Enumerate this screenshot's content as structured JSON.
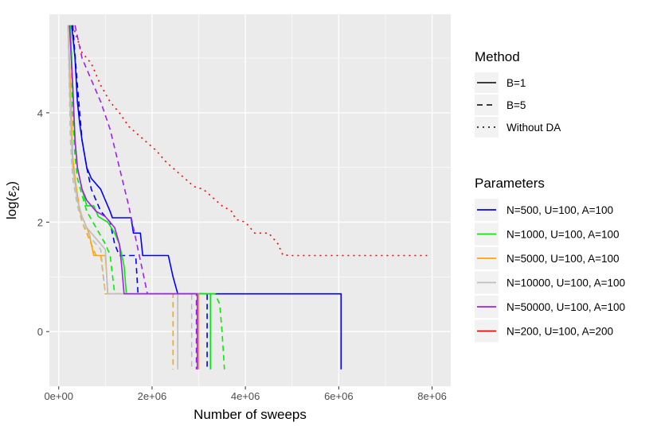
{
  "chart_data": {
    "type": "line",
    "title": "",
    "xlabel": "Number of sweeps",
    "ylabel_prefix": "log(",
    "ylabel_symbol": "ε",
    "ylabel_sub": "2",
    "ylabel_suffix": ")",
    "xlim": [
      -200000,
      8400000
    ],
    "ylim": [
      -1.0,
      5.8
    ],
    "xticks": [
      0,
      2000000,
      4000000,
      6000000,
      8000000
    ],
    "xtick_labels": [
      "0e+00",
      "2e+06",
      "4e+06",
      "6e+06",
      "8e+06"
    ],
    "yticks": [
      0,
      2,
      4
    ],
    "ytick_labels": [
      "0",
      "2",
      "4"
    ],
    "grid": true,
    "legend_placement": "right",
    "legend_method": {
      "title": "Method",
      "entries": [
        {
          "label": "B=1",
          "dash": "solid"
        },
        {
          "label": "B=5",
          "dash": "dashed"
        },
        {
          "label": "Without DA",
          "dash": "dotted"
        }
      ]
    },
    "legend_params": {
      "title": "Parameters",
      "entries": [
        {
          "label": "N=500, U=100, A=100",
          "color": "#0000FF"
        },
        {
          "label": "N=1000, U=100, A=100",
          "color": "#00EE00"
        },
        {
          "label": "N=5000, U=100, A=100",
          "color": "#FFA500"
        },
        {
          "label": "N=10000, U=100, A=100",
          "color": "#BEBEBE"
        },
        {
          "label": "N=50000, U=100, A=100",
          "color": "#A020F0"
        },
        {
          "label": "N=200, U=100, A=200",
          "color": "#FF0000"
        }
      ]
    },
    "series": [
      {
        "name": "N=200, U=100, A=200 / Without DA",
        "color": "#FF0000",
        "dash": "dotted",
        "points": [
          [
            300000,
            5.6
          ],
          [
            500000,
            5.1
          ],
          [
            700000,
            4.9
          ],
          [
            900000,
            4.5
          ],
          [
            1100000,
            4.2
          ],
          [
            1300000,
            4.0
          ],
          [
            1500000,
            3.75
          ],
          [
            1700000,
            3.6
          ],
          [
            1900000,
            3.45
          ],
          [
            2100000,
            3.3
          ],
          [
            2300000,
            3.1
          ],
          [
            2500000,
            2.95
          ],
          [
            2700000,
            2.8
          ],
          [
            2900000,
            2.65
          ],
          [
            3100000,
            2.6
          ],
          [
            3300000,
            2.45
          ],
          [
            3500000,
            2.3
          ],
          [
            3700000,
            2.2
          ],
          [
            3800000,
            2.05
          ],
          [
            4000000,
            2.0
          ],
          [
            4200000,
            1.8
          ],
          [
            4500000,
            1.8
          ],
          [
            4700000,
            1.6
          ],
          [
            4800000,
            1.4
          ],
          [
            5000000,
            1.39
          ],
          [
            7950000,
            1.39
          ]
        ]
      },
      {
        "name": "N=500 / B=1",
        "color": "#0000FF",
        "dash": "solid",
        "points": [
          [
            280000,
            5.6
          ],
          [
            350000,
            5.0
          ],
          [
            400000,
            4.2
          ],
          [
            450000,
            3.8
          ],
          [
            500000,
            3.5
          ],
          [
            600000,
            3.0
          ],
          [
            700000,
            2.8
          ],
          [
            900000,
            2.6
          ],
          [
            1000000,
            2.4
          ],
          [
            1100000,
            2.2
          ],
          [
            1150000,
            2.08
          ],
          [
            1550000,
            2.08
          ],
          [
            1600000,
            1.8
          ],
          [
            1750000,
            1.8
          ],
          [
            1800000,
            1.39
          ],
          [
            2350000,
            1.39
          ],
          [
            2450000,
            1.0
          ],
          [
            2550000,
            0.69
          ],
          [
            6050000,
            0.69
          ],
          [
            6050000,
            -0.69
          ]
        ]
      },
      {
        "name": "N=500 / B=5",
        "color": "#0000FF",
        "dash": "dashed",
        "points": [
          [
            300000,
            5.6
          ],
          [
            400000,
            4.5
          ],
          [
            500000,
            3.5
          ],
          [
            600000,
            3.0
          ],
          [
            700000,
            2.6
          ],
          [
            800000,
            2.4
          ],
          [
            900000,
            2.2
          ],
          [
            1100000,
            2.0
          ],
          [
            1200000,
            1.6
          ],
          [
            1300000,
            1.39
          ],
          [
            1650000,
            1.39
          ],
          [
            1700000,
            0.69
          ],
          [
            3180000,
            0.69
          ],
          [
            3180000,
            -0.69
          ]
        ]
      },
      {
        "name": "N=1000 / B=1",
        "color": "#00EE00",
        "dash": "solid",
        "points": [
          [
            250000,
            5.6
          ],
          [
            300000,
            4.5
          ],
          [
            350000,
            3.5
          ],
          [
            400000,
            3.0
          ],
          [
            500000,
            2.6
          ],
          [
            600000,
            2.3
          ],
          [
            750000,
            2.3
          ],
          [
            850000,
            2.1
          ],
          [
            1050000,
            2.0
          ],
          [
            1200000,
            1.8
          ],
          [
            1300000,
            1.6
          ],
          [
            1400000,
            1.2
          ],
          [
            1450000,
            0.69
          ],
          [
            3250000,
            0.69
          ],
          [
            3250000,
            -0.69
          ]
        ]
      },
      {
        "name": "N=1000 / B=5",
        "color": "#00EE00",
        "dash": "dashed",
        "points": [
          [
            250000,
            5.6
          ],
          [
            300000,
            4.0
          ],
          [
            350000,
            3.2
          ],
          [
            400000,
            2.8
          ],
          [
            500000,
            2.5
          ],
          [
            600000,
            2.2
          ],
          [
            800000,
            1.9
          ],
          [
            1000000,
            1.6
          ],
          [
            1100000,
            1.4
          ],
          [
            1200000,
            0.69
          ],
          [
            3350000,
            0.69
          ],
          [
            3450000,
            0.5
          ],
          [
            3500000,
            0.0
          ],
          [
            3550000,
            -0.69
          ]
        ]
      },
      {
        "name": "N=5000 / B=1",
        "color": "#FFA500",
        "dash": "solid",
        "points": [
          [
            200000,
            5.6
          ],
          [
            250000,
            4.5
          ],
          [
            300000,
            3.2
          ],
          [
            350000,
            2.8
          ],
          [
            450000,
            2.2
          ],
          [
            550000,
            2.0
          ],
          [
            650000,
            1.8
          ],
          [
            750000,
            1.39
          ],
          [
            1000000,
            1.39
          ],
          [
            1050000,
            0.69
          ],
          [
            3000000,
            0.69
          ],
          [
            3000000,
            -0.69
          ]
        ]
      },
      {
        "name": "N=5000 / B=5",
        "color": "#FFA500",
        "dash": "dashed",
        "points": [
          [
            200000,
            5.6
          ],
          [
            250000,
            4.0
          ],
          [
            300000,
            3.0
          ],
          [
            400000,
            2.5
          ],
          [
            500000,
            2.0
          ],
          [
            650000,
            1.7
          ],
          [
            800000,
            1.39
          ],
          [
            900000,
            1.39
          ],
          [
            1000000,
            0.69
          ],
          [
            2450000,
            0.69
          ],
          [
            2450000,
            -0.69
          ]
        ]
      },
      {
        "name": "N=10000 / B=1",
        "color": "#BEBEBE",
        "dash": "solid",
        "points": [
          [
            200000,
            5.6
          ],
          [
            250000,
            4.0
          ],
          [
            300000,
            3.0
          ],
          [
            400000,
            2.4
          ],
          [
            500000,
            2.1
          ],
          [
            600000,
            1.9
          ],
          [
            800000,
            1.7
          ],
          [
            1000000,
            1.5
          ],
          [
            1050000,
            0.69
          ],
          [
            2550000,
            0.69
          ],
          [
            2550000,
            -0.69
          ]
        ]
      },
      {
        "name": "N=10000 / B=5",
        "color": "#BEBEBE",
        "dash": "dashed",
        "points": [
          [
            200000,
            5.6
          ],
          [
            250000,
            3.5
          ],
          [
            300000,
            2.8
          ],
          [
            400000,
            2.3
          ],
          [
            500000,
            2.0
          ],
          [
            700000,
            1.7
          ],
          [
            900000,
            1.5
          ],
          [
            1000000,
            0.69
          ],
          [
            2850000,
            0.69
          ],
          [
            2850000,
            -0.69
          ]
        ]
      },
      {
        "name": "N=50000 / B=1",
        "color": "#A020F0",
        "dash": "solid",
        "points": [
          [
            230000,
            5.6
          ],
          [
            300000,
            4.5
          ],
          [
            350000,
            3.5
          ],
          [
            400000,
            3.0
          ],
          [
            500000,
            2.6
          ],
          [
            600000,
            2.4
          ],
          [
            800000,
            2.2
          ],
          [
            1000000,
            2.1
          ],
          [
            1100000,
            2.0
          ],
          [
            1200000,
            1.9
          ],
          [
            1300000,
            1.6
          ],
          [
            1350000,
            1.2
          ],
          [
            1400000,
            0.69
          ],
          [
            2970000,
            0.69
          ],
          [
            2970000,
            -0.69
          ]
        ]
      },
      {
        "name": "N=50000 / B=5",
        "color": "#A020F0",
        "dash": "dashed",
        "points": [
          [
            350000,
            5.6
          ],
          [
            500000,
            5.0
          ],
          [
            700000,
            4.6
          ],
          [
            900000,
            4.2
          ],
          [
            1100000,
            3.7
          ],
          [
            1300000,
            3.0
          ],
          [
            1500000,
            2.3
          ],
          [
            1600000,
            1.9
          ],
          [
            1700000,
            1.5
          ],
          [
            1800000,
            1.1
          ],
          [
            1900000,
            0.69
          ],
          [
            2950000,
            0.69
          ],
          [
            2950000,
            -0.69
          ]
        ]
      }
    ]
  }
}
